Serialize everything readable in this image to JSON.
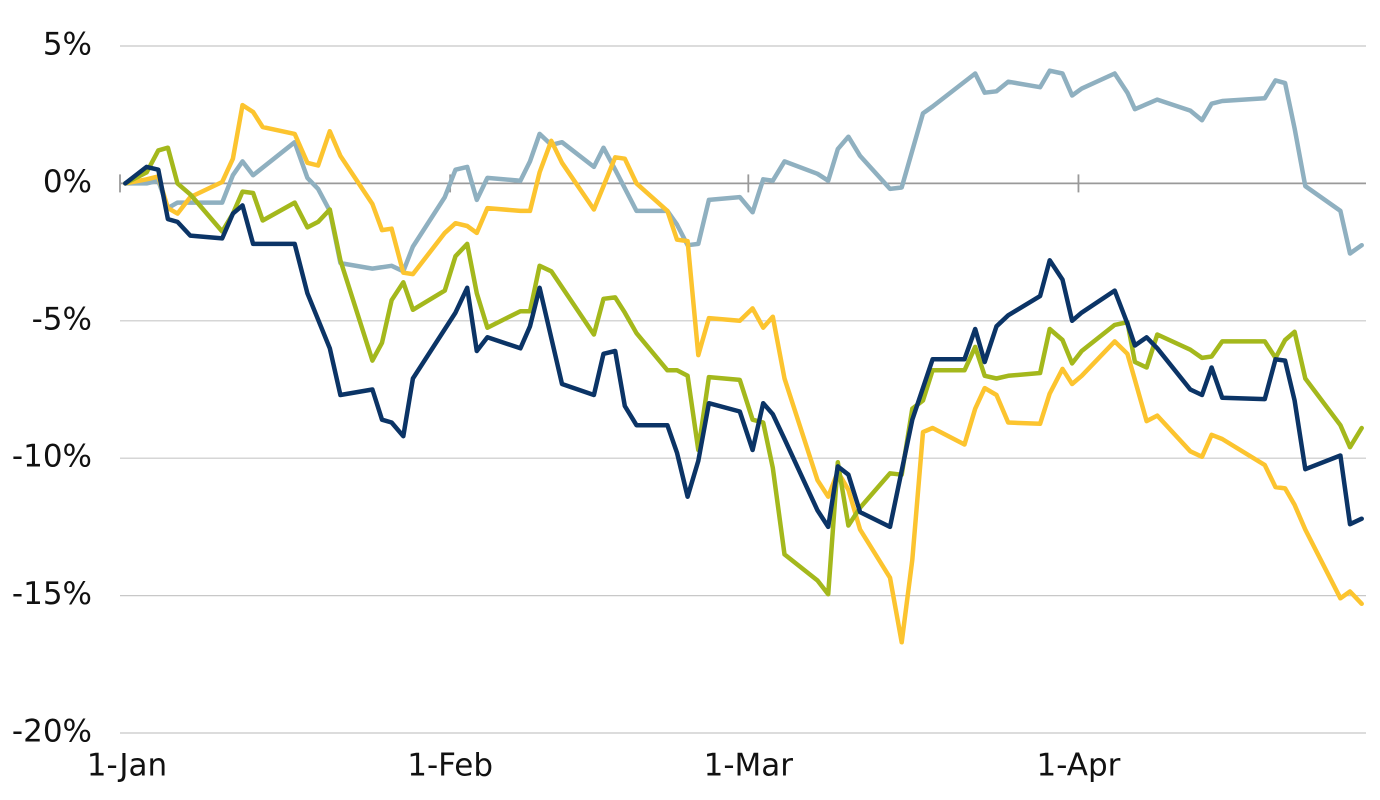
{
  "chart_data": {
    "type": "line",
    "xlim": [
      0,
      117
    ],
    "xticks": [
      {
        "value": 0,
        "label": "1-Jan"
      },
      {
        "value": 31,
        "label": "1-Feb"
      },
      {
        "value": 59,
        "label": "1-Mar"
      },
      {
        "value": 90,
        "label": "1-Apr"
      }
    ],
    "ylim": [
      -20,
      5
    ],
    "yticks": [
      {
        "value": 5,
        "label": "5%"
      },
      {
        "value": 0,
        "label": "0%"
      },
      {
        "value": -5,
        "label": "-5%"
      },
      {
        "value": -10,
        "label": "-10%"
      },
      {
        "value": -15,
        "label": "-15%"
      },
      {
        "value": -20,
        "label": "-20%"
      }
    ],
    "grid": true,
    "series": [
      {
        "color": "#8fb0c0",
        "x": [
          0.5,
          2.5,
          3.6,
          4.5,
          5.4,
          9.6,
          10.6,
          11.5,
          12.5,
          16.4,
          17.6,
          18.6,
          19.7,
          20.7,
          23.7,
          25.5,
          26.6,
          27.5,
          30.5,
          31.5,
          32.6,
          33.5,
          34.5,
          37.6,
          38.5,
          39.4,
          40.5,
          41.5,
          44.5,
          45.4,
          46.5,
          48.5,
          51.4,
          52.3,
          53.3,
          54.3,
          55.3,
          58.2,
          59.4,
          60.4,
          61.3,
          62.4,
          65.5,
          66.5,
          67.4,
          68.4,
          69.5,
          72.3,
          73.4,
          75.4,
          76.3,
          80.3,
          81.2,
          82.3,
          83.4,
          86.4,
          87.3,
          88.5,
          89.4,
          90.3,
          93.4,
          94.6,
          95.3,
          97.4,
          100.5,
          101.6,
          102.5,
          103.5,
          107.5,
          108.5,
          109.4,
          110.3,
          111.3,
          114.6,
          115.5,
          116.6
        ],
        "values": [
          0,
          0,
          0.1,
          -0.9,
          -0.7,
          -0.7,
          0.3,
          0.8,
          0.3,
          1.5,
          0.2,
          -0.2,
          -1.0,
          -2.9,
          -3.1,
          -3.0,
          -3.2,
          -2.3,
          -0.5,
          0.5,
          0.6,
          -0.6,
          0.2,
          0.1,
          0.8,
          1.8,
          1.4,
          1.5,
          0.6,
          1.3,
          0.5,
          -1.0,
          -1.0,
          -1.5,
          -2.25,
          -2.2,
          -0.6,
          -0.5,
          -1.05,
          0.15,
          0.1,
          0.8,
          0.35,
          0.1,
          1.25,
          1.7,
          1.0,
          -0.2,
          -0.15,
          2.55,
          2.8,
          4.0,
          3.3,
          3.35,
          3.7,
          3.5,
          4.1,
          4.0,
          3.2,
          3.45,
          4.0,
          3.3,
          2.7,
          3.05,
          2.65,
          2.3,
          2.9,
          3.0,
          3.1,
          3.75,
          3.65,
          2.0,
          -0.1,
          -1.0,
          -2.55,
          -2.25
        ]
      },
      {
        "color": "#fcc42f",
        "x": [
          0.5,
          2.5,
          3.6,
          4.5,
          5.4,
          6.6,
          9.6,
          10.6,
          11.5,
          12.5,
          13.4,
          16.4,
          17.6,
          18.6,
          19.7,
          20.7,
          23.7,
          24.6,
          25.5,
          26.6,
          27.5,
          30.5,
          31.5,
          32.6,
          33.5,
          34.5,
          37.6,
          38.5,
          39.4,
          40.5,
          41.5,
          44.5,
          45.4,
          46.5,
          47.4,
          48.5,
          51.4,
          52.3,
          53.3,
          54.3,
          55.3,
          58.2,
          59.4,
          60.4,
          61.3,
          62.4,
          65.5,
          66.5,
          67.4,
          68.4,
          69.5,
          72.3,
          73.4,
          74.4,
          75.4,
          76.3,
          79.3,
          80.3,
          81.2,
          82.3,
          83.4,
          86.4,
          87.3,
          88.5,
          89.4,
          90.3,
          93.4,
          94.6,
          95.3,
          96.4,
          97.4,
          100.5,
          101.6,
          102.5,
          103.5,
          107.5,
          108.5,
          109.4,
          110.3,
          111.3,
          114.6,
          115.5,
          116.6
        ],
        "values": [
          0,
          0.15,
          0.25,
          -0.9,
          -1.1,
          -0.5,
          0.05,
          0.9,
          2.85,
          2.6,
          2.05,
          1.8,
          0.75,
          0.65,
          1.9,
          1.0,
          -0.75,
          -1.7,
          -1.65,
          -3.25,
          -3.3,
          -1.8,
          -1.45,
          -1.55,
          -1.8,
          -0.9,
          -1.0,
          -1.0,
          0.4,
          1.55,
          0.75,
          -0.95,
          -0.1,
          0.95,
          0.9,
          0,
          -1.0,
          -2.05,
          -2.1,
          -6.25,
          -4.9,
          -5.0,
          -4.55,
          -5.25,
          -4.85,
          -7.1,
          -10.8,
          -11.4,
          -10.5,
          -11.15,
          -12.6,
          -14.35,
          -16.7,
          -13.7,
          -9.05,
          -8.9,
          -9.5,
          -8.2,
          -7.45,
          -7.7,
          -8.7,
          -8.75,
          -7.65,
          -6.75,
          -7.3,
          -7.0,
          -5.75,
          -6.2,
          -7.15,
          -8.65,
          -8.45,
          -9.75,
          -9.95,
          -9.15,
          -9.3,
          -10.25,
          -11.05,
          -11.1,
          -11.7,
          -12.6,
          -15.1,
          -14.85,
          -15.3
        ]
      },
      {
        "color": "#a4b81c",
        "x": [
          0.5,
          2.5,
          3.6,
          4.5,
          5.4,
          6.6,
          9.6,
          10.6,
          11.5,
          12.5,
          13.4,
          16.4,
          17.6,
          18.6,
          19.7,
          20.7,
          23.7,
          24.6,
          25.5,
          26.6,
          27.5,
          30.5,
          31.5,
          32.6,
          33.5,
          34.5,
          37.6,
          38.5,
          39.4,
          40.5,
          44.5,
          45.4,
          46.5,
          47.4,
          48.5,
          51.4,
          52.3,
          53.3,
          54.3,
          55.3,
          58.2,
          59.4,
          60.4,
          61.3,
          62.4,
          65.5,
          66.5,
          67.4,
          68.4,
          69.5,
          72.3,
          73.4,
          74.4,
          75.4,
          76.3,
          79.3,
          80.3,
          81.2,
          82.3,
          83.4,
          86.4,
          87.3,
          88.5,
          89.4,
          90.3,
          93.4,
          94.6,
          95.3,
          96.4,
          97.4,
          100.5,
          101.6,
          102.5,
          103.5,
          107.5,
          108.5,
          109.4,
          110.3,
          111.3,
          114.6,
          115.5,
          116.6
        ],
        "values": [
          0,
          0.4,
          1.2,
          1.3,
          0,
          -0.4,
          -1.75,
          -1.1,
          -0.3,
          -0.35,
          -1.35,
          -0.7,
          -1.6,
          -1.4,
          -0.95,
          -2.8,
          -6.45,
          -5.8,
          -4.25,
          -3.6,
          -4.6,
          -3.9,
          -2.65,
          -2.2,
          -4.0,
          -5.25,
          -4.65,
          -4.65,
          -3.0,
          -3.2,
          -5.5,
          -4.2,
          -4.15,
          -4.7,
          -5.45,
          -6.8,
          -6.8,
          -7.0,
          -9.7,
          -7.05,
          -7.15,
          -8.6,
          -8.7,
          -10.35,
          -13.5,
          -14.45,
          -14.95,
          -10.15,
          -12.45,
          -11.8,
          -10.55,
          -10.6,
          -8.2,
          -7.9,
          -6.8,
          -6.8,
          -5.95,
          -7.0,
          -7.1,
          -7.0,
          -6.9,
          -5.3,
          -5.7,
          -6.55,
          -6.1,
          -5.15,
          -5.05,
          -6.5,
          -6.7,
          -5.5,
          -6.05,
          -6.35,
          -6.3,
          -5.75,
          -5.75,
          -6.35,
          -5.7,
          -5.4,
          -7.1,
          -8.8,
          -9.6,
          -8.9
        ]
      },
      {
        "color": "#0b3466",
        "x": [
          0.5,
          2.5,
          3.6,
          4.5,
          5.4,
          6.6,
          9.6,
          10.6,
          11.5,
          12.5,
          13.4,
          16.4,
          17.6,
          19.7,
          20.7,
          23.7,
          24.6,
          25.5,
          26.6,
          27.5,
          31.5,
          32.6,
          33.5,
          34.5,
          37.6,
          38.5,
          39.4,
          41.5,
          44.5,
          45.4,
          46.5,
          47.4,
          48.5,
          51.4,
          52.3,
          53.3,
          54.3,
          55.3,
          58.2,
          59.4,
          60.4,
          61.3,
          62.4,
          65.5,
          66.5,
          67.4,
          68.4,
          69.5,
          72.3,
          74.4,
          76.3,
          79.3,
          80.3,
          81.2,
          82.3,
          83.4,
          86.4,
          87.3,
          88.5,
          89.4,
          90.3,
          93.4,
          94.6,
          95.3,
          96.4,
          97.4,
          100.5,
          101.6,
          102.5,
          103.5,
          107.5,
          108.5,
          109.4,
          110.3,
          111.3,
          114.6,
          115.5,
          116.6
        ],
        "values": [
          0,
          0.6,
          0.5,
          -1.3,
          -1.4,
          -1.9,
          -2.0,
          -1.1,
          -0.8,
          -2.2,
          -2.2,
          -2.2,
          -4.0,
          -6.0,
          -7.7,
          -7.5,
          -8.6,
          -8.7,
          -9.2,
          -7.1,
          -4.7,
          -3.8,
          -6.1,
          -5.6,
          -6.0,
          -5.2,
          -3.8,
          -7.3,
          -7.7,
          -6.2,
          -6.1,
          -8.1,
          -8.8,
          -8.8,
          -9.8,
          -11.4,
          -10.1,
          -8.0,
          -8.3,
          -9.7,
          -8.0,
          -8.4,
          -9.3,
          -11.9,
          -12.5,
          -10.3,
          -10.6,
          -11.96,
          -12.5,
          -8.6,
          -6.4,
          -6.4,
          -5.3,
          -6.5,
          -5.2,
          -4.8,
          -4.1,
          -2.8,
          -3.5,
          -5.0,
          -4.7,
          -3.9,
          -5.1,
          -5.9,
          -5.6,
          -6.0,
          -7.5,
          -7.7,
          -6.7,
          -7.8,
          -7.85,
          -6.4,
          -6.45,
          -7.9,
          -10.4,
          -9.9,
          -12.4,
          -12.2
        ]
      }
    ]
  }
}
